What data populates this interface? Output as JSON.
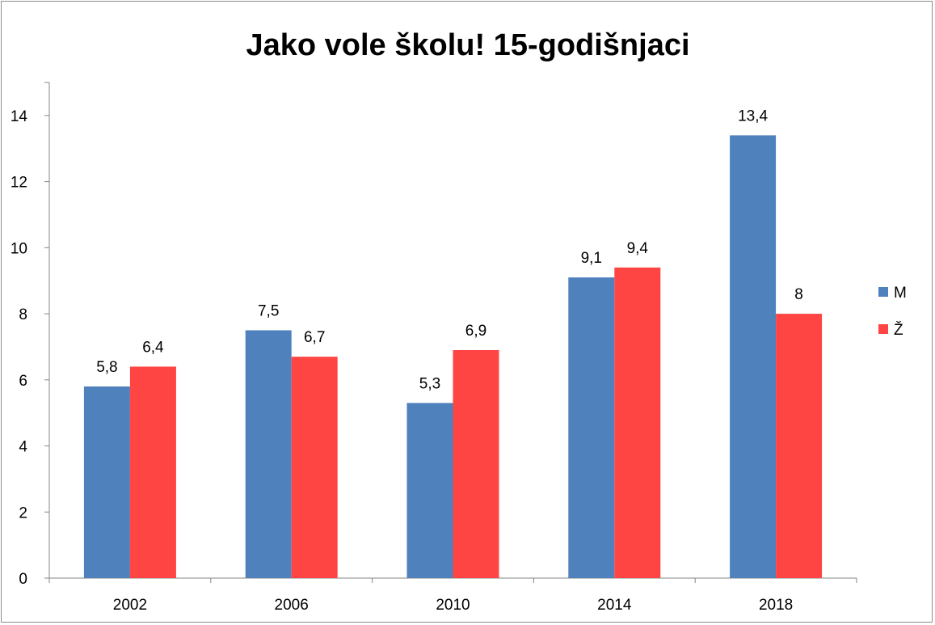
{
  "chart_data": {
    "type": "bar",
    "title": "Jako vole školu! 15-godišnjaci",
    "xlabel": "",
    "ylabel": "",
    "categories": [
      "2002",
      "2006",
      "2010",
      "2014",
      "2018"
    ],
    "series": [
      {
        "name": "M",
        "values": [
          5.8,
          7.5,
          5.3,
          9.1,
          13.4
        ],
        "labels": [
          "5,8",
          "7,5",
          "5,3",
          "9,1",
          "13,4"
        ],
        "color": "#4f81bd"
      },
      {
        "name": "Ž",
        "values": [
          6.4,
          6.7,
          6.9,
          9.4,
          8.0
        ],
        "labels": [
          "6,4",
          "6,7",
          "6,9",
          "9,4",
          "8"
        ],
        "color": "#ff4444"
      }
    ],
    "ylim": [
      0,
      15
    ],
    "yticks": [
      0,
      2,
      4,
      6,
      8,
      10,
      12,
      14
    ],
    "grid": false,
    "legend_position": "right"
  }
}
